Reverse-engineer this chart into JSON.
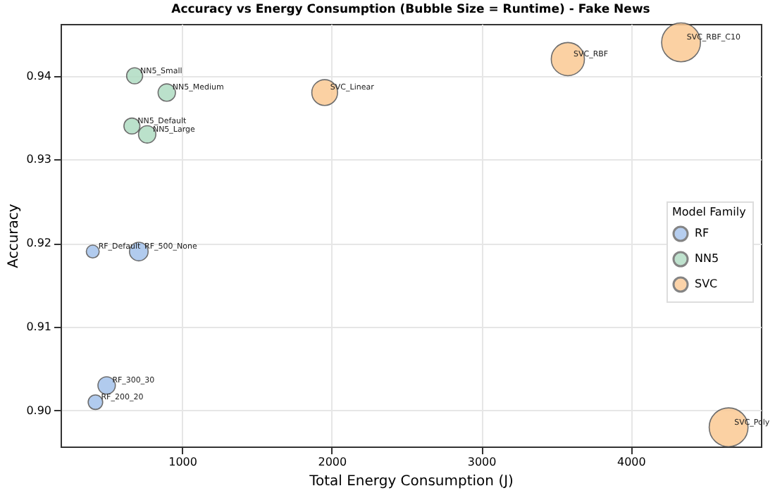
{
  "chart_data": {
    "type": "bubble",
    "title": "Accuracy vs Energy Consumption (Bubble Size = Runtime) - Fake News",
    "xlabel": "Total Energy Consumption (J)",
    "ylabel": "Accuracy",
    "legend_title": "Model Family",
    "series": [
      {
        "name": "RF",
        "color": "#a4c2ec",
        "x": [
          402,
          710,
          495,
          420
        ],
        "values": [
          0.919,
          0.919,
          0.903,
          0.901
        ],
        "sizes": [
          0.11,
          0.23,
          0.2,
          0.14
        ]
      },
      {
        "name": "NN5",
        "color": "#b0dcc2",
        "x": [
          682,
          897,
          664,
          766
        ],
        "values": [
          0.94,
          0.938,
          0.934,
          0.933
        ],
        "sizes": [
          0.17,
          0.2,
          0.17,
          0.2
        ]
      },
      {
        "name": "SVC",
        "color": "#fbc994",
        "x": [
          1953,
          3579,
          4336,
          4654
        ],
        "values": [
          0.938,
          0.942,
          0.944,
          0.898
        ],
        "sizes": [
          0.44,
          0.73,
          1,
          1
        ]
      }
    ],
    "annotations": [
      {
        "text": "RF_Default",
        "x": 402,
        "y": 0.919
      },
      {
        "text": "RF_500_None",
        "x": 710,
        "y": 0.919
      },
      {
        "text": "RF_300_30",
        "x": 495,
        "y": 0.903
      },
      {
        "text": "RF_200_20",
        "x": 420,
        "y": 0.901
      },
      {
        "text": "NN5_Small",
        "x": 682,
        "y": 0.94
      },
      {
        "text": "NN5_Medium",
        "x": 897,
        "y": 0.938
      },
      {
        "text": "NN5_Default",
        "x": 664,
        "y": 0.934
      },
      {
        "text": "NN5_Large",
        "x": 766,
        "y": 0.933
      },
      {
        "text": "SVC_Linear",
        "x": 1953,
        "y": 0.938
      },
      {
        "text": "SVC_RBF",
        "x": 3579,
        "y": 0.942
      },
      {
        "text": "SVC_RBF_C10",
        "x": 4336,
        "y": 0.944
      },
      {
        "text": "SVC_Poly",
        "x": 4654,
        "y": 0.898
      }
    ],
    "xlim": [
      187,
      4870
    ],
    "ylim": [
      0.8957,
      0.9462
    ],
    "xticks": [
      1000,
      2000,
      3000,
      4000
    ],
    "yticks": [
      {
        "value": 0.9,
        "label": "0.90"
      },
      0.91,
      0.92,
      0.93,
      0.94
    ],
    "grid": true,
    "legend": "right",
    "marker": "circle"
  }
}
